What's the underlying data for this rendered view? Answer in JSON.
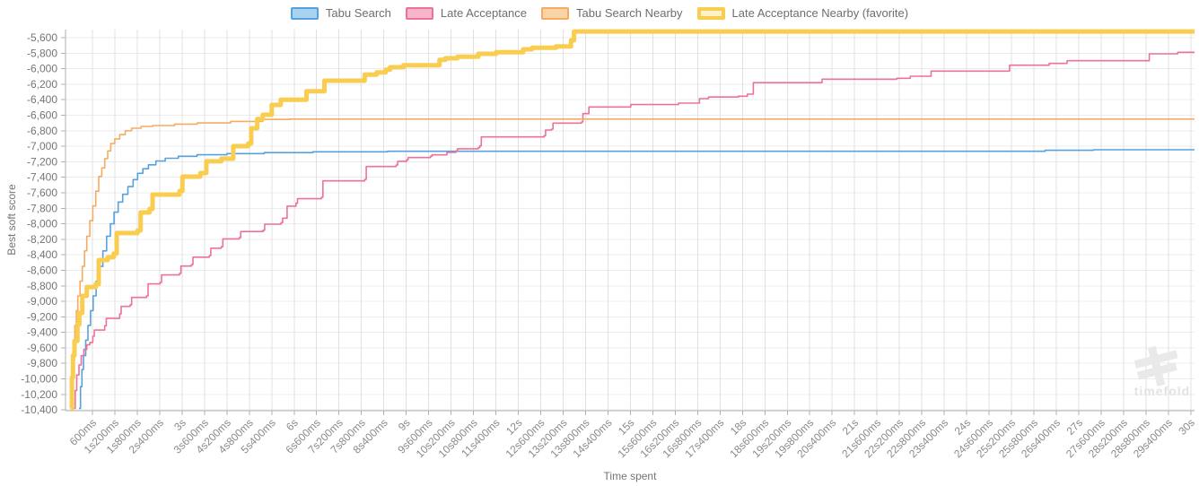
{
  "watermark": {
    "text": "timefold"
  },
  "chart_data": {
    "type": "line",
    "line_style": "step-after",
    "title": "",
    "xlabel": "Time spent",
    "ylabel": "Best soft score",
    "grid": true,
    "legend_position": "top",
    "axes": {
      "xlim_s": [
        -0.12,
        30.1
      ],
      "ylim": [
        -10410,
        -5496
      ],
      "y_tick_start": -5600,
      "y_tick_interval": -200,
      "y_tick_labels": [
        "-5,600",
        "-5,800",
        "-6,000",
        "-6,200",
        "-6,400",
        "-6,600",
        "-6,800",
        "-7,000",
        "-7,200",
        "-7,400",
        "-7,600",
        "-7,800",
        "-8,000",
        "-8,200",
        "-8,400",
        "-8,600",
        "-8,800",
        "-9,000",
        "-9,200",
        "-9,400",
        "-9,600",
        "-9,800",
        "-10,000",
        "-10,200",
        "-10,400"
      ],
      "x_tick_start_s": 0.6,
      "x_tick_interval_s": 0.6,
      "x_tick_labels": [
        "600ms",
        "1s200ms",
        "1s800ms",
        "2s400ms",
        "3s",
        "3s600ms",
        "4s200ms",
        "4s800ms",
        "5s400ms",
        "6s",
        "6s600ms",
        "7s200ms",
        "7s800ms",
        "8s400ms",
        "9s",
        "9s600ms",
        "10s200ms",
        "10s800ms",
        "11s400ms",
        "12s",
        "12s600ms",
        "13s200ms",
        "13s800ms",
        "14s400ms",
        "15s",
        "15s600ms",
        "16s200ms",
        "16s800ms",
        "17s400ms",
        "18s",
        "18s600ms",
        "19s200ms",
        "19s800ms",
        "20s400ms",
        "21s",
        "21s600ms",
        "22s200ms",
        "22s800ms",
        "23s400ms",
        "24s",
        "24s600ms",
        "25s200ms",
        "25s800ms",
        "26s400ms",
        "27s",
        "27s600ms",
        "28s200ms",
        "28s800ms",
        "29s400ms",
        "30s"
      ]
    },
    "series": [
      {
        "name": "Tabu Search",
        "slug": "tabu-search",
        "color": "#57a1dd",
        "legend_fill": "#a8d4f2",
        "line_width": 1.6,
        "points": [
          [
            0.24,
            -10380
          ],
          [
            0.28,
            -10100
          ],
          [
            0.32,
            -9880
          ],
          [
            0.36,
            -9700
          ],
          [
            0.42,
            -9500
          ],
          [
            0.48,
            -9310
          ],
          [
            0.55,
            -9120
          ],
          [
            0.62,
            -8930
          ],
          [
            0.7,
            -8740
          ],
          [
            0.79,
            -8550
          ],
          [
            0.88,
            -8350
          ],
          [
            0.98,
            -8160
          ],
          [
            1.08,
            -8000
          ],
          [
            1.18,
            -7850
          ],
          [
            1.29,
            -7720
          ],
          [
            1.41,
            -7620
          ],
          [
            1.55,
            -7520
          ],
          [
            1.69,
            -7430
          ],
          [
            1.81,
            -7350
          ],
          [
            1.95,
            -7290
          ],
          [
            2.1,
            -7240
          ],
          [
            2.3,
            -7190
          ],
          [
            2.55,
            -7155
          ],
          [
            2.9,
            -7130
          ],
          [
            3.4,
            -7110
          ],
          [
            4.2,
            -7095
          ],
          [
            5.2,
            -7082
          ],
          [
            6.5,
            -7072
          ],
          [
            8.5,
            -7065
          ],
          [
            26.1,
            -7052
          ],
          [
            27.4,
            -7045
          ]
        ]
      },
      {
        "name": "Late Acceptance",
        "slug": "late-acceptance",
        "color": "#ee7298",
        "legend_fill": "#f8b4c9",
        "line_width": 1.6,
        "points": [
          [
            0.1,
            -10380
          ],
          [
            0.14,
            -10150
          ],
          [
            0.18,
            -9950
          ],
          [
            0.24,
            -9820
          ],
          [
            0.3,
            -9700
          ],
          [
            0.37,
            -9620
          ],
          [
            0.45,
            -9560
          ],
          [
            0.53,
            -9530
          ],
          [
            0.61,
            -9450
          ],
          [
            0.65,
            -9370
          ],
          [
            0.93,
            -9315
          ],
          [
            0.97,
            -9220
          ],
          [
            1.33,
            -9160
          ],
          [
            1.37,
            -9065
          ],
          [
            1.61,
            -9045
          ],
          [
            1.65,
            -8950
          ],
          [
            2.05,
            -8930
          ],
          [
            2.09,
            -8775
          ],
          [
            2.41,
            -8755
          ],
          [
            2.45,
            -8660
          ],
          [
            2.93,
            -8640
          ],
          [
            2.97,
            -8545
          ],
          [
            3.25,
            -8525
          ],
          [
            3.29,
            -8430
          ],
          [
            3.73,
            -8410
          ],
          [
            3.77,
            -8315
          ],
          [
            4.05,
            -8295
          ],
          [
            4.09,
            -8195
          ],
          [
            4.53,
            -8178
          ],
          [
            4.57,
            -8100
          ],
          [
            5.17,
            -8082
          ],
          [
            5.21,
            -8005
          ],
          [
            5.65,
            -7985
          ],
          [
            5.69,
            -7927
          ],
          [
            5.81,
            -7773
          ],
          [
            6.05,
            -7735
          ],
          [
            6.09,
            -7677
          ],
          [
            6.73,
            -7658
          ],
          [
            6.77,
            -7446
          ],
          [
            7.89,
            -7427
          ],
          [
            7.93,
            -7261
          ],
          [
            8.73,
            -7242
          ],
          [
            8.77,
            -7195
          ],
          [
            9.01,
            -7176
          ],
          [
            9.05,
            -7146
          ],
          [
            9.65,
            -7129
          ],
          [
            9.69,
            -7111
          ],
          [
            10.09,
            -7080
          ],
          [
            10.33,
            -7060
          ],
          [
            10.37,
            -7033
          ],
          [
            10.93,
            -7018
          ],
          [
            10.97,
            -6995
          ],
          [
            11.01,
            -6880
          ],
          [
            12.69,
            -6864
          ],
          [
            12.73,
            -6791
          ],
          [
            12.89,
            -6779
          ],
          [
            12.93,
            -6702
          ],
          [
            13.69,
            -6687
          ],
          [
            13.73,
            -6579
          ],
          [
            13.89,
            -6494
          ],
          [
            15.01,
            -6463
          ],
          [
            16.29,
            -6444
          ],
          [
            16.85,
            -6386
          ],
          [
            17.09,
            -6366
          ],
          [
            17.89,
            -6355
          ],
          [
            18.13,
            -6328
          ],
          [
            18.29,
            -6181
          ],
          [
            20.13,
            -6135
          ],
          [
            22.13,
            -6124
          ],
          [
            22.49,
            -6097
          ],
          [
            23.05,
            -6031
          ],
          [
            25.15,
            -5955
          ],
          [
            26.21,
            -5932
          ],
          [
            26.69,
            -5897
          ],
          [
            28.89,
            -5808
          ],
          [
            29.65,
            -5788
          ]
        ]
      },
      {
        "name": "Tabu Search Nearby",
        "slug": "tabu-search-nearby",
        "color": "#f5ac62",
        "legend_fill": "#fad4a5",
        "line_width": 1.6,
        "points": [
          [
            0.03,
            -10380
          ],
          [
            0.05,
            -9700
          ],
          [
            0.09,
            -9500
          ],
          [
            0.13,
            -9310
          ],
          [
            0.17,
            -9120
          ],
          [
            0.21,
            -8930
          ],
          [
            0.27,
            -8740
          ],
          [
            0.33,
            -8550
          ],
          [
            0.39,
            -8350
          ],
          [
            0.45,
            -8160
          ],
          [
            0.53,
            -7960
          ],
          [
            0.61,
            -7770
          ],
          [
            0.69,
            -7580
          ],
          [
            0.77,
            -7390
          ],
          [
            0.85,
            -7280
          ],
          [
            0.93,
            -7160
          ],
          [
            1.01,
            -7060
          ],
          [
            1.09,
            -6965
          ],
          [
            1.2,
            -6905
          ],
          [
            1.33,
            -6850
          ],
          [
            1.48,
            -6800
          ],
          [
            1.65,
            -6768
          ],
          [
            1.9,
            -6745
          ],
          [
            2.21,
            -6733
          ],
          [
            2.8,
            -6715
          ],
          [
            3.41,
            -6700
          ],
          [
            4.3,
            -6680
          ],
          [
            5.16,
            -6655
          ],
          [
            5.88,
            -6650
          ]
        ]
      },
      {
        "name": "Late Acceptance Nearby (favorite)",
        "slug": "late-acceptance-nearby",
        "color": "#f9cd4f",
        "legend_fill": "#fdf2c8",
        "line_width": 5,
        "points": [
          [
            0.02,
            -10380
          ],
          [
            0.05,
            -9980
          ],
          [
            0.08,
            -9700
          ],
          [
            0.12,
            -9510
          ],
          [
            0.2,
            -9300
          ],
          [
            0.25,
            -9150
          ],
          [
            0.33,
            -8930
          ],
          [
            0.45,
            -8815
          ],
          [
            0.69,
            -8780
          ],
          [
            0.77,
            -8467
          ],
          [
            1.01,
            -8432
          ],
          [
            1.17,
            -8386
          ],
          [
            1.25,
            -8120
          ],
          [
            1.81,
            -8086
          ],
          [
            1.89,
            -7854
          ],
          [
            2.13,
            -7808
          ],
          [
            2.21,
            -7623
          ],
          [
            2.93,
            -7577
          ],
          [
            3.01,
            -7392
          ],
          [
            3.49,
            -7346
          ],
          [
            3.65,
            -7195
          ],
          [
            4.05,
            -7161
          ],
          [
            4.37,
            -6999
          ],
          [
            4.77,
            -6964
          ],
          [
            4.85,
            -6768
          ],
          [
            5.01,
            -6650
          ],
          [
            5.16,
            -6595
          ],
          [
            5.4,
            -6467
          ],
          [
            5.64,
            -6400
          ],
          [
            6.33,
            -6290
          ],
          [
            6.81,
            -6155
          ],
          [
            7.89,
            -6077
          ],
          [
            8.21,
            -6047
          ],
          [
            8.45,
            -6013
          ],
          [
            8.57,
            -5982
          ],
          [
            8.93,
            -5955
          ],
          [
            9.89,
            -5886
          ],
          [
            10.05,
            -5866
          ],
          [
            10.37,
            -5846
          ],
          [
            10.93,
            -5808
          ],
          [
            11.41,
            -5788
          ],
          [
            12.13,
            -5750
          ],
          [
            12.37,
            -5731
          ],
          [
            13.01,
            -5712
          ],
          [
            13.41,
            -5635
          ],
          [
            13.49,
            -5520
          ]
        ]
      }
    ]
  }
}
